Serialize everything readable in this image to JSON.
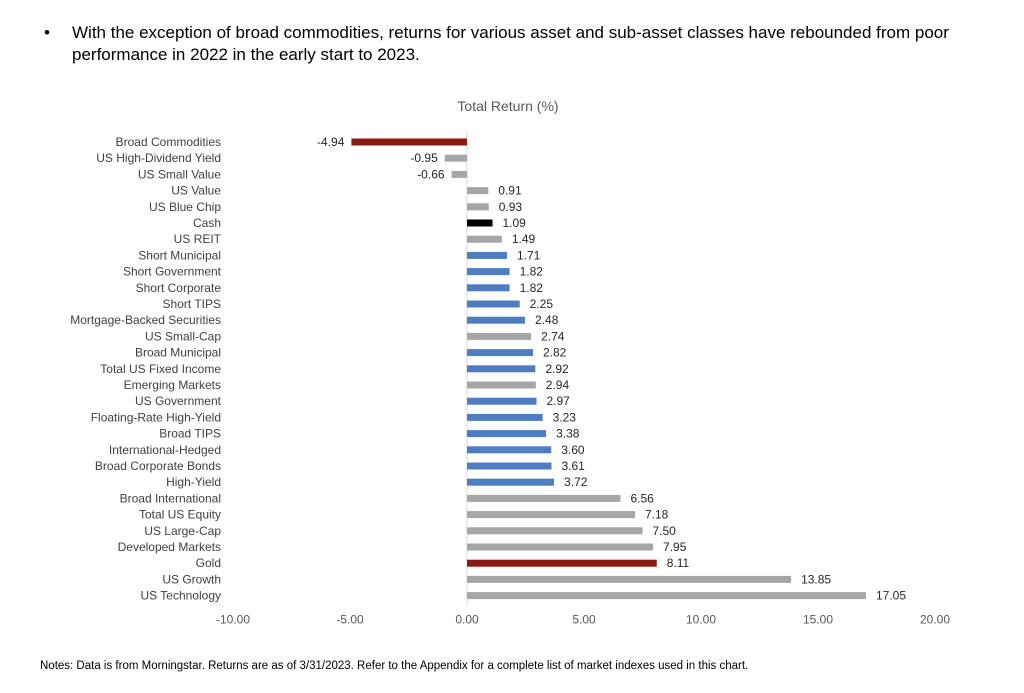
{
  "bullet": {
    "symbol": "•",
    "text": "With the exception of broad commodities, returns for various asset and sub-asset classes have rebounded from poor performance in 2022 in the early start to 2023."
  },
  "notes": "Notes: Data is from Morningstar. Returns are as of 3/31/2023. Refer to the Appendix for a complete list of market indexes used in this chart.",
  "chart_data": {
    "type": "bar",
    "orientation": "horizontal",
    "title": "Total Return (%)",
    "xlim": [
      -10,
      20
    ],
    "x_ticks": [
      "-10.00",
      "-5.00",
      "0.00",
      "5.00",
      "10.00",
      "15.00",
      "20.00"
    ],
    "grid": "vertical at 0 only",
    "legend": "none",
    "categories": [
      "Broad Commodities",
      "US High-Dividend Yield",
      "US Small Value",
      "US Value",
      "US Blue Chip",
      "Cash",
      "US REIT",
      "Short Municipal",
      "Short Government",
      "Short Corporate",
      "Short TIPS",
      "Mortgage-Backed Securities",
      "US Small-Cap",
      "Broad Municipal",
      "Total US Fixed Income",
      "Emerging Markets",
      "US Government",
      "Floating-Rate High-Yield",
      "Broad TIPS",
      "International-Hedged",
      "Broad Corporate Bonds",
      "High-Yield",
      "Broad International",
      "Total US Equity",
      "US Large-Cap",
      "Developed Markets",
      "Gold",
      "US Growth",
      "US Technology"
    ],
    "values": [
      -4.94,
      -0.95,
      -0.66,
      0.91,
      0.93,
      1.09,
      1.49,
      1.71,
      1.82,
      1.82,
      2.25,
      2.48,
      2.74,
      2.82,
      2.92,
      2.94,
      2.97,
      3.23,
      3.38,
      3.6,
      3.61,
      3.72,
      6.56,
      7.18,
      7.5,
      7.95,
      8.11,
      13.85,
      17.05
    ],
    "value_labels": [
      "-4.94",
      "-0.95",
      "-0.66",
      "0.91",
      "0.93",
      "1.09",
      "1.49",
      "1.71",
      "1.82",
      "1.82",
      "2.25",
      "2.48",
      "2.74",
      "2.82",
      "2.92",
      "2.94",
      "2.97",
      "3.23",
      "3.38",
      "3.60",
      "3.61",
      "3.72",
      "6.56",
      "7.18",
      "7.50",
      "7.95",
      "8.11",
      "13.85",
      "17.05"
    ],
    "bar_colors": [
      "#8b1a12",
      "#a6a6a6",
      "#a6a6a6",
      "#a6a6a6",
      "#a6a6a6",
      "#000000",
      "#a6a6a6",
      "#4f7dc1",
      "#4f7dc1",
      "#4f7dc1",
      "#4f7dc1",
      "#4f7dc1",
      "#a6a6a6",
      "#4f7dc1",
      "#4f7dc1",
      "#a6a6a6",
      "#4f7dc1",
      "#4f7dc1",
      "#4f7dc1",
      "#4f7dc1",
      "#4f7dc1",
      "#4f7dc1",
      "#a6a6a6",
      "#a6a6a6",
      "#a6a6a6",
      "#a6a6a6",
      "#8b1a12",
      "#a6a6a6",
      "#a6a6a6"
    ],
    "colors": {
      "commodities_gold": "#8b1a12",
      "equity_other": "#a6a6a6",
      "fixed_income": "#4f7dc1",
      "cash": "#000000",
      "zero_line": "#d9d9d9"
    }
  }
}
